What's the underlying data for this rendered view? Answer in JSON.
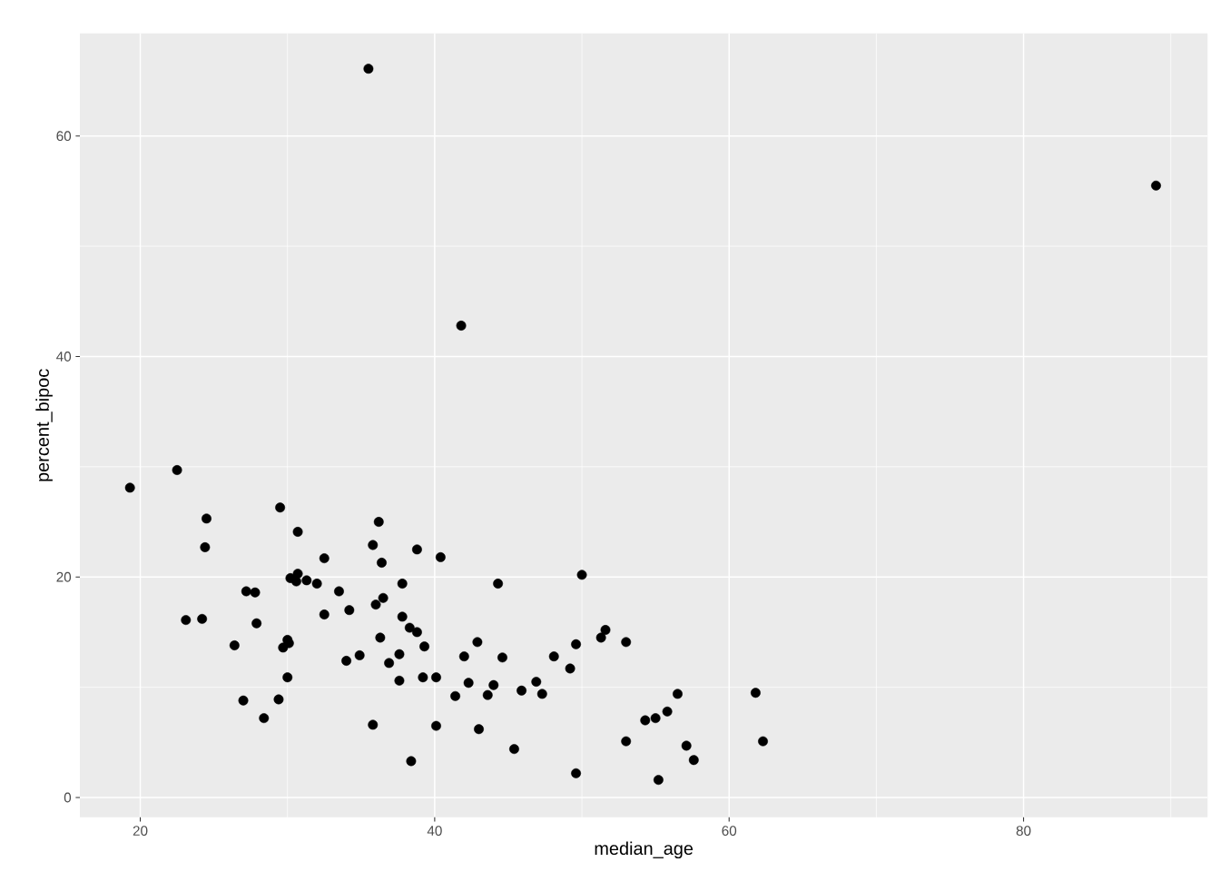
{
  "chart_data": {
    "type": "scatter",
    "xlabel": "median_age",
    "ylabel": "percent_bipoc",
    "xlim": [
      15.9,
      92.5
    ],
    "ylim": [
      -1.8,
      69.3
    ],
    "xticks": [
      20,
      40,
      60,
      80
    ],
    "yticks": [
      0,
      20,
      40,
      60
    ],
    "grid": true,
    "marker": "circle",
    "series": [
      {
        "color": "#000000",
        "x": [
          19.3,
          22.5,
          24.5,
          24.4,
          29.5,
          30.7,
          32.5,
          36.2,
          35.8,
          36.4,
          38.8,
          40.4,
          30.2,
          30.7,
          30.6,
          31.3,
          32.0,
          33.5,
          37.8,
          27.2,
          27.8,
          36.5,
          36.0,
          32.5,
          34.2,
          37.8,
          38.3,
          38.8,
          23.1,
          24.2,
          27.9,
          36.3,
          39.3,
          26.4,
          30.0,
          30.1,
          29.7,
          34.0,
          34.9,
          37.6,
          36.9,
          30.0,
          37.6,
          39.2,
          40.1,
          27.0,
          29.4,
          28.4,
          35.8,
          40.1,
          38.4,
          44.3,
          50.0,
          42.9,
          42.0,
          44.6,
          48.1,
          49.6,
          51.3,
          51.6,
          53.0,
          49.2,
          42.3,
          44.0,
          41.4,
          43.6,
          45.9,
          46.9,
          47.3,
          43.0,
          45.4,
          49.6,
          56.5,
          55.8,
          55.0,
          54.3,
          53.0,
          57.1,
          57.6,
          55.2,
          61.8,
          62.3,
          35.5,
          41.8,
          89.0
        ],
        "values": [
          28.1,
          29.7,
          25.3,
          22.7,
          26.3,
          24.1,
          21.7,
          25.0,
          22.9,
          21.3,
          22.5,
          21.8,
          19.9,
          20.3,
          19.6,
          19.7,
          19.4,
          18.7,
          19.4,
          18.7,
          18.6,
          18.1,
          17.5,
          16.6,
          17.0,
          16.4,
          15.4,
          15.0,
          16.1,
          16.2,
          15.8,
          14.5,
          13.7,
          13.8,
          14.3,
          14.0,
          13.6,
          12.4,
          12.9,
          13.0,
          12.2,
          10.9,
          10.6,
          10.9,
          10.9,
          8.8,
          8.9,
          7.2,
          6.6,
          6.5,
          3.3,
          19.4,
          20.2,
          14.1,
          12.8,
          12.7,
          12.8,
          13.9,
          14.5,
          15.2,
          14.1,
          11.7,
          10.4,
          10.2,
          9.2,
          9.3,
          9.7,
          10.5,
          9.4,
          6.2,
          4.4,
          2.2,
          9.4,
          7.8,
          7.2,
          7.0,
          5.1,
          4.7,
          3.4,
          1.6,
          9.5,
          5.1,
          66.1,
          42.8,
          55.5
        ]
      }
    ]
  }
}
